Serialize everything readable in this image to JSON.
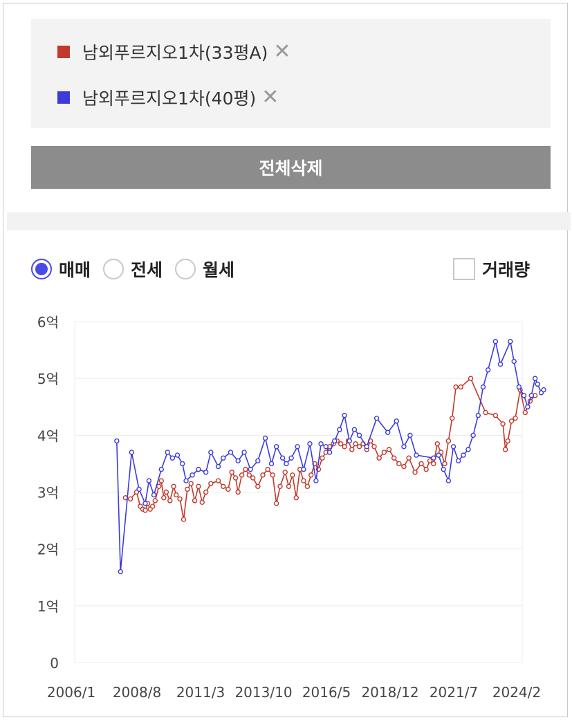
{
  "compare_list": {
    "items": [
      {
        "label": "남외푸르지오1차(33평A)",
        "color": "#c0392b"
      },
      {
        "label": "남외푸르지오1차(40평)",
        "color": "#3b3bdc"
      }
    ],
    "remove_icon": "close-icon"
  },
  "delete_all_label": "전체삭제",
  "deal_types": [
    {
      "label": "매매",
      "selected": true
    },
    {
      "label": "전세",
      "selected": false
    },
    {
      "label": "월세",
      "selected": false
    }
  ],
  "volume_toggle": {
    "label": "거래량",
    "checked": false
  },
  "chart_data": {
    "type": "line",
    "y_ticks": [
      "0",
      "1억",
      "2억",
      "3억",
      "4억",
      "5억",
      "6억"
    ],
    "x_ticks": [
      "2006/1",
      "2008/8",
      "2011/3",
      "2013/10",
      "2016/5",
      "2018/12",
      "2021/7",
      "2024/2"
    ],
    "ylim": [
      0,
      6
    ],
    "xlim": [
      2006.0,
      2024.08
    ],
    "grid": true,
    "series": [
      {
        "name": "남외푸르지오1차(33평A)",
        "color": "#c0392b",
        "points": [
          [
            2008.05,
            2.9
          ],
          [
            2008.25,
            2.88
          ],
          [
            2008.5,
            3.0
          ],
          [
            2008.65,
            2.75
          ],
          [
            2008.75,
            2.7
          ],
          [
            2008.85,
            2.68
          ],
          [
            2008.95,
            2.8
          ],
          [
            2009.05,
            2.7
          ],
          [
            2009.15,
            2.75
          ],
          [
            2009.25,
            2.85
          ],
          [
            2009.4,
            3.1
          ],
          [
            2009.5,
            3.2
          ],
          [
            2009.6,
            2.9
          ],
          [
            2009.7,
            3.0
          ],
          [
            2009.85,
            2.85
          ],
          [
            2010.0,
            3.1
          ],
          [
            2010.1,
            2.95
          ],
          [
            2010.25,
            2.88
          ],
          [
            2010.4,
            2.52
          ],
          [
            2010.55,
            3.05
          ],
          [
            2010.7,
            3.15
          ],
          [
            2010.85,
            2.85
          ],
          [
            2011.0,
            3.1
          ],
          [
            2011.15,
            2.82
          ],
          [
            2011.3,
            3.0
          ],
          [
            2011.5,
            3.15
          ],
          [
            2011.8,
            3.2
          ],
          [
            2012.0,
            3.1
          ],
          [
            2012.2,
            3.05
          ],
          [
            2012.35,
            3.35
          ],
          [
            2012.5,
            3.25
          ],
          [
            2012.6,
            3.0
          ],
          [
            2012.75,
            3.3
          ],
          [
            2012.9,
            3.4
          ],
          [
            2013.05,
            3.3
          ],
          [
            2013.2,
            3.25
          ],
          [
            2013.4,
            3.1
          ],
          [
            2013.6,
            3.3
          ],
          [
            2013.8,
            3.4
          ],
          [
            2014.0,
            3.3
          ],
          [
            2014.15,
            2.8
          ],
          [
            2014.3,
            3.1
          ],
          [
            2014.5,
            3.35
          ],
          [
            2014.65,
            3.1
          ],
          [
            2014.8,
            3.3
          ],
          [
            2014.95,
            2.9
          ],
          [
            2015.1,
            3.4
          ],
          [
            2015.25,
            3.2
          ],
          [
            2015.4,
            3.1
          ],
          [
            2015.55,
            3.3
          ],
          [
            2015.7,
            3.5
          ],
          [
            2015.85,
            3.4
          ],
          [
            2016.0,
            3.6
          ],
          [
            2016.15,
            3.7
          ],
          [
            2016.3,
            3.8
          ],
          [
            2016.45,
            3.85
          ],
          [
            2016.6,
            3.9
          ],
          [
            2016.75,
            3.85
          ],
          [
            2016.9,
            3.8
          ],
          [
            2017.05,
            3.9
          ],
          [
            2017.2,
            3.75
          ],
          [
            2017.35,
            3.85
          ],
          [
            2017.5,
            3.8
          ],
          [
            2017.65,
            3.85
          ],
          [
            2017.8,
            3.75
          ],
          [
            2017.95,
            3.9
          ],
          [
            2018.1,
            3.8
          ],
          [
            2018.3,
            3.6
          ],
          [
            2018.5,
            3.7
          ],
          [
            2018.7,
            3.75
          ],
          [
            2018.9,
            3.6
          ],
          [
            2019.1,
            3.5
          ],
          [
            2019.3,
            3.45
          ],
          [
            2019.5,
            3.6
          ],
          [
            2019.75,
            3.35
          ],
          [
            2020.0,
            3.5
          ],
          [
            2020.2,
            3.4
          ],
          [
            2020.35,
            3.55
          ],
          [
            2020.5,
            3.5
          ],
          [
            2020.65,
            3.85
          ],
          [
            2020.8,
            3.7
          ],
          [
            2020.95,
            3.5
          ],
          [
            2021.1,
            3.9
          ],
          [
            2021.25,
            4.3
          ],
          [
            2021.4,
            4.85
          ],
          [
            2021.6,
            4.85
          ],
          [
            2022.0,
            5.0
          ],
          [
            2022.6,
            4.4
          ],
          [
            2023.0,
            4.35
          ],
          [
            2023.3,
            4.2
          ],
          [
            2023.4,
            3.75
          ],
          [
            2023.5,
            3.9
          ],
          [
            2023.65,
            4.25
          ],
          [
            2023.8,
            4.3
          ],
          [
            2024.0,
            4.8
          ],
          [
            2024.2,
            4.4
          ],
          [
            2024.4,
            4.6
          ],
          [
            2024.6,
            4.7
          ]
        ]
      },
      {
        "name": "남외푸르지오1차(40평)",
        "color": "#3b3bdc",
        "points": [
          [
            2007.7,
            3.9
          ],
          [
            2007.85,
            1.6
          ],
          [
            2008.3,
            3.7
          ],
          [
            2008.6,
            3.05
          ],
          [
            2008.85,
            2.8
          ],
          [
            2009.0,
            3.2
          ],
          [
            2009.2,
            2.95
          ],
          [
            2009.5,
            3.4
          ],
          [
            2009.75,
            3.7
          ],
          [
            2009.95,
            3.6
          ],
          [
            2010.15,
            3.65
          ],
          [
            2010.35,
            3.5
          ],
          [
            2010.5,
            3.2
          ],
          [
            2010.75,
            3.3
          ],
          [
            2011.0,
            3.4
          ],
          [
            2011.3,
            3.35
          ],
          [
            2011.5,
            3.7
          ],
          [
            2011.8,
            3.45
          ],
          [
            2012.0,
            3.6
          ],
          [
            2012.3,
            3.7
          ],
          [
            2012.6,
            3.55
          ],
          [
            2012.85,
            3.7
          ],
          [
            2013.1,
            3.4
          ],
          [
            2013.4,
            3.55
          ],
          [
            2013.7,
            3.95
          ],
          [
            2013.95,
            3.5
          ],
          [
            2014.15,
            3.8
          ],
          [
            2014.4,
            3.6
          ],
          [
            2014.55,
            3.5
          ],
          [
            2014.75,
            3.6
          ],
          [
            2015.0,
            3.8
          ],
          [
            2015.25,
            3.4
          ],
          [
            2015.5,
            3.85
          ],
          [
            2015.75,
            3.2
          ],
          [
            2015.95,
            3.85
          ],
          [
            2016.15,
            3.8
          ],
          [
            2016.3,
            3.7
          ],
          [
            2016.5,
            3.9
          ],
          [
            2016.7,
            4.1
          ],
          [
            2016.9,
            4.35
          ],
          [
            2017.1,
            3.9
          ],
          [
            2017.3,
            4.1
          ],
          [
            2017.5,
            4.0
          ],
          [
            2017.8,
            3.8
          ],
          [
            2018.2,
            4.3
          ],
          [
            2018.65,
            4.05
          ],
          [
            2019.0,
            4.25
          ],
          [
            2019.3,
            3.8
          ],
          [
            2019.55,
            4.0
          ],
          [
            2019.8,
            3.65
          ],
          [
            2020.5,
            3.6
          ],
          [
            2020.7,
            3.65
          ],
          [
            2020.9,
            3.4
          ],
          [
            2021.1,
            3.2
          ],
          [
            2021.3,
            3.8
          ],
          [
            2021.5,
            3.55
          ],
          [
            2021.7,
            3.65
          ],
          [
            2021.9,
            3.75
          ],
          [
            2022.1,
            4.0
          ],
          [
            2022.3,
            4.35
          ],
          [
            2022.5,
            4.85
          ],
          [
            2022.7,
            5.15
          ],
          [
            2023.0,
            5.65
          ],
          [
            2023.2,
            5.25
          ],
          [
            2023.6,
            5.65
          ],
          [
            2023.75,
            5.3
          ],
          [
            2023.95,
            4.85
          ],
          [
            2024.15,
            4.7
          ],
          [
            2024.3,
            4.5
          ],
          [
            2024.45,
            4.7
          ],
          [
            2024.6,
            5.0
          ],
          [
            2024.7,
            4.9
          ],
          [
            2024.85,
            4.75
          ],
          [
            2024.95,
            4.8
          ]
        ]
      }
    ]
  }
}
